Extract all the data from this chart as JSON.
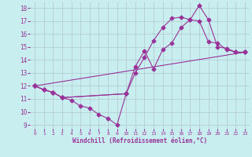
{
  "xlabel": "Windchill (Refroidissement éolien,°C)",
  "bg_color": "#c8eef0",
  "grid_color": "#b0c8d0",
  "line_color": "#993399",
  "marker": "D",
  "markersize": 2.5,
  "linewidth": 0.8,
  "xlim": [
    -0.5,
    23.5
  ],
  "ylim": [
    8.7,
    18.5
  ],
  "xticks": [
    0,
    1,
    2,
    3,
    4,
    5,
    6,
    7,
    8,
    9,
    10,
    11,
    12,
    13,
    14,
    15,
    16,
    17,
    18,
    19,
    20,
    21,
    22,
    23
  ],
  "yticks": [
    9,
    10,
    11,
    12,
    13,
    14,
    15,
    16,
    17,
    18
  ],
  "lines": [
    {
      "x": [
        0,
        1,
        2,
        3,
        4,
        5,
        6,
        7,
        8,
        9,
        10
      ],
      "y": [
        12.0,
        11.7,
        11.5,
        11.1,
        10.9,
        10.45,
        10.3,
        9.8,
        9.5,
        9.0,
        11.4
      ]
    },
    {
      "x": [
        0,
        1,
        2,
        3,
        10,
        11,
        12,
        13,
        14,
        15,
        16,
        17,
        18,
        19,
        20,
        21,
        22,
        23
      ],
      "y": [
        12.0,
        11.7,
        11.5,
        11.1,
        11.4,
        13.5,
        14.7,
        13.3,
        14.8,
        15.3,
        16.5,
        17.1,
        17.0,
        15.4,
        15.3,
        14.8,
        14.6,
        14.6
      ]
    },
    {
      "x": [
        0,
        1,
        2,
        3,
        10,
        11,
        12,
        13,
        14,
        15,
        16,
        17,
        18,
        19,
        20,
        21,
        22,
        23
      ],
      "y": [
        12.0,
        11.7,
        11.5,
        11.1,
        11.4,
        13.0,
        14.2,
        15.5,
        16.5,
        17.2,
        17.3,
        17.1,
        18.2,
        17.1,
        15.0,
        14.9,
        14.6,
        14.6
      ]
    },
    {
      "x": [
        0,
        23
      ],
      "y": [
        12.0,
        14.6
      ]
    }
  ]
}
